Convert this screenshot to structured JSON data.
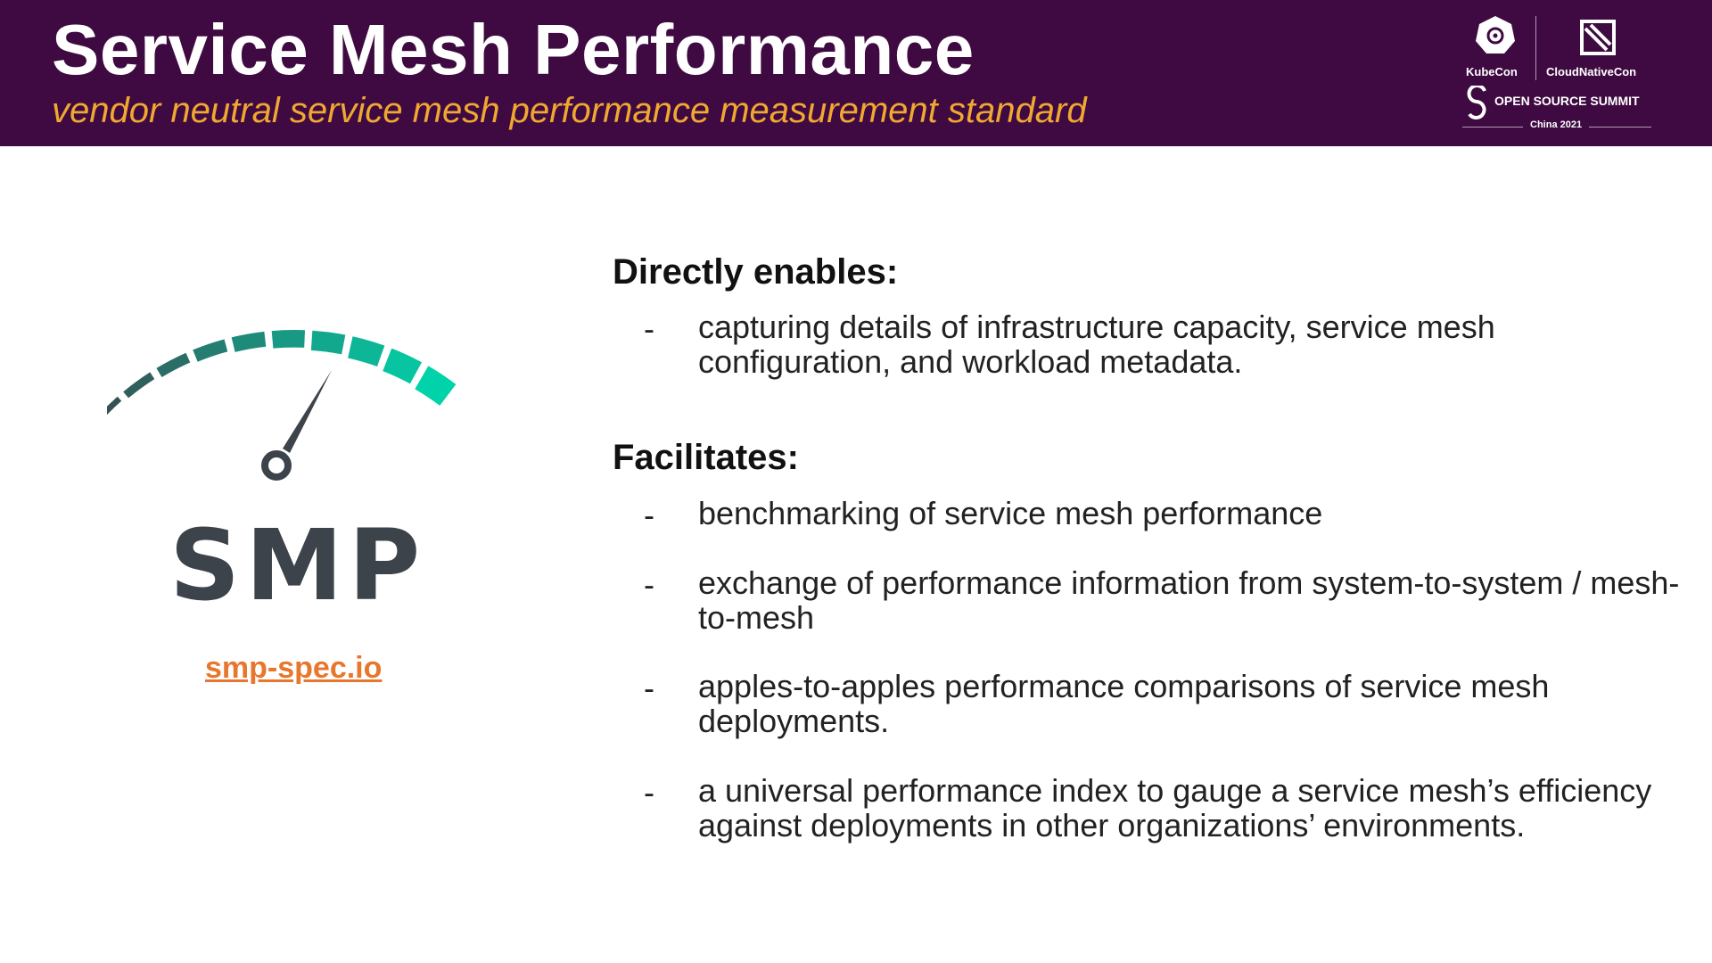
{
  "header": {
    "title": "Service Mesh Performance",
    "subtitle": "vendor neutral service mesh performance measurement standard",
    "logos": {
      "kubecon": "KubeCon",
      "cloudnativecon": "CloudNativeCon",
      "oss": "OPEN SOURCE SUMMIT",
      "event": "China 2021"
    }
  },
  "left": {
    "logo_text": "SMP",
    "link": "smp-spec.io"
  },
  "sections": [
    {
      "heading": "Directly enables:",
      "bullets": [
        "capturing details of infrastructure capacity, service mesh configuration, and workload metadata."
      ]
    },
    {
      "heading": "Facilitates:",
      "bullets": [
        "benchmarking of service mesh performance",
        "exchange of performance information from system-to-system / mesh-to-mesh",
        "apples-to-apples performance comparisons of service mesh deployments.",
        "a universal performance index to gauge a service mesh’s efficiency against deployments in other organizations’ environments."
      ]
    }
  ],
  "bullet_marker": "-",
  "colors": {
    "header_bg": "#3e0a41",
    "subtitle": "#f0a830",
    "link": "#e8772e",
    "logo_dark": "#3c434a",
    "gauge_start": "#3c434a",
    "gauge_end": "#00d3a9"
  }
}
